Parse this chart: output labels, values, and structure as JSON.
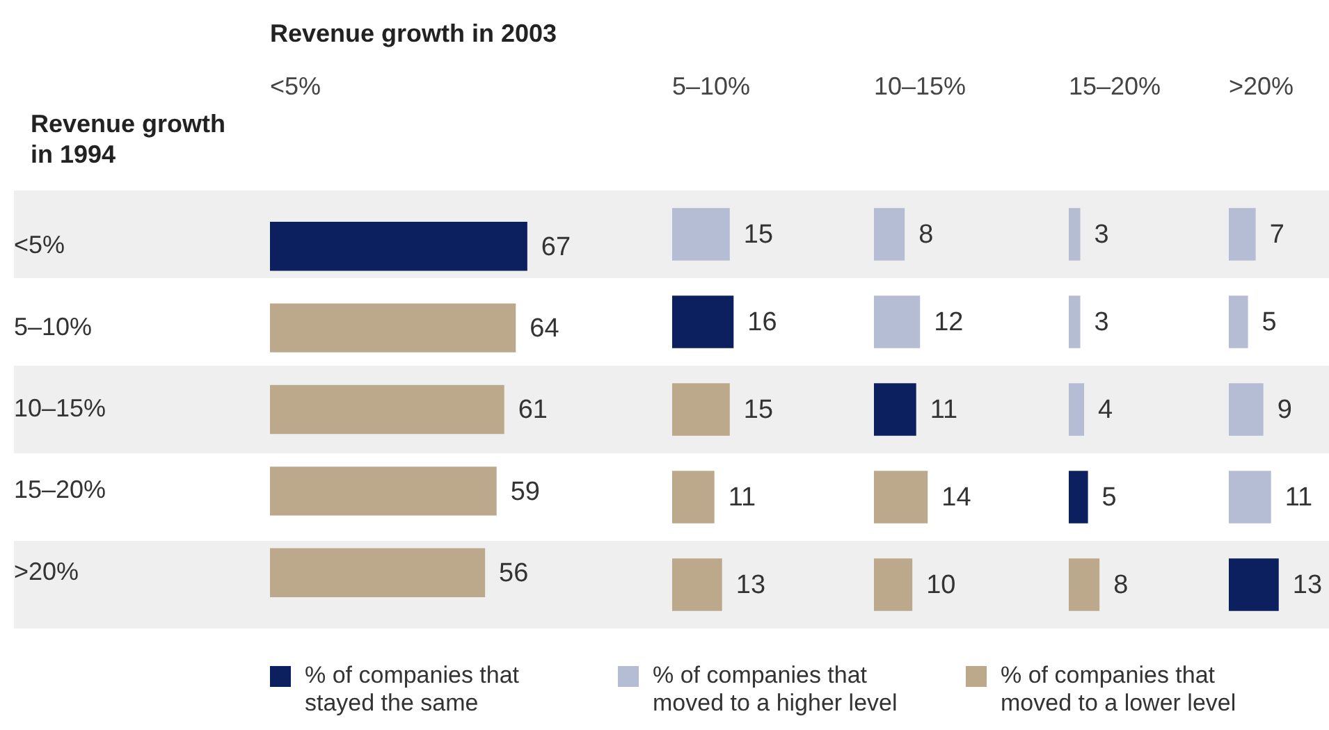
{
  "chart_data": [
    {
      "type": "bar",
      "orientation": "horizontal",
      "stacked": true,
      "data_labels": true,
      "tick_labels": "y",
      "grid": false,
      "legend": "bottom",
      "title": "Revenue growth  in 2003",
      "subtitle": "<5%",
      "ylabel": "Revenue growth in 1994",
      "categories": [
        "<5%",
        "5–10%",
        "10–15%",
        "15–20%",
        ">20%"
      ],
      "series": [
        {
          "name": "% of companies that stayed the same",
          "color": "#0c1f5e",
          "values": [
            67,
            null,
            null,
            null,
            null
          ]
        },
        {
          "name": "% of companies that moved to a higher level",
          "color": "#b5bdd5",
          "values": [
            null,
            null,
            null,
            null,
            null
          ]
        },
        {
          "name": "% of companies that moved to a lower level",
          "color": "#bca98b",
          "values": [
            null,
            64,
            61,
            59,
            56
          ]
        }
      ]
    },
    {
      "type": "bar",
      "orientation": "horizontal",
      "stacked": true,
      "data_labels": true,
      "tick_labels": false,
      "grid": false,
      "title": "5–10%",
      "categories": [
        null,
        null,
        null,
        null,
        null
      ],
      "series": [
        {
          "color": "#0c1f5e",
          "values": [
            null,
            16,
            null,
            null,
            null
          ]
        },
        {
          "color": "#b5bdd5",
          "values": [
            15,
            null,
            null,
            null,
            null
          ]
        },
        {
          "color": "#bca98b",
          "values": [
            null,
            null,
            15,
            11,
            13
          ]
        }
      ]
    },
    {
      "type": "bar",
      "orientation": "horizontal",
      "stacked": true,
      "data_labels": true,
      "tick_labels": false,
      "grid": false,
      "title": "10–15%",
      "categories": [
        null,
        null,
        null,
        null,
        null
      ],
      "series": [
        {
          "color": "#0c1f5e",
          "values": [
            null,
            null,
            11,
            null,
            null
          ]
        },
        {
          "color": "#b5bdd5",
          "values": [
            8,
            12,
            null,
            null,
            null
          ]
        },
        {
          "color": "#bca98b",
          "values": [
            null,
            null,
            null,
            14,
            10
          ]
        }
      ]
    },
    {
      "type": "bar",
      "orientation": "horizontal",
      "stacked": true,
      "data_labels": true,
      "tick_labels": false,
      "grid": false,
      "title": "15–20%",
      "categories": [
        null,
        null,
        null,
        null,
        null
      ],
      "series": [
        {
          "color": "#0c1f5e",
          "values": [
            null,
            null,
            null,
            5,
            null
          ]
        },
        {
          "color": "#b5bdd5",
          "values": [
            3,
            3,
            4,
            null,
            null
          ]
        },
        {
          "color": "#bca98b",
          "values": [
            null,
            null,
            null,
            null,
            8
          ]
        }
      ]
    },
    {
      "type": "bar",
      "orientation": "horizontal",
      "stacked": true,
      "data_labels": true,
      "tick_labels": false,
      "grid": false,
      "title": ">20%",
      "categories": [
        null,
        null,
        null,
        null,
        null
      ],
      "series": [
        {
          "color": "#0c1f5e",
          "values": [
            null,
            null,
            null,
            null,
            13
          ]
        },
        {
          "color": "#b5bdd5",
          "values": [
            7,
            5,
            9,
            11,
            null
          ]
        },
        {
          "color": "#bca98b",
          "values": [
            null,
            null,
            null,
            null,
            null
          ]
        }
      ]
    }
  ]
}
